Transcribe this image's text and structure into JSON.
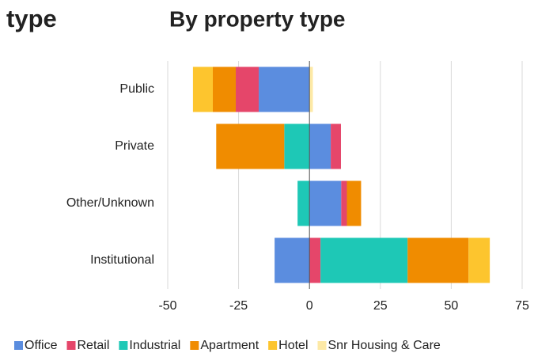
{
  "side_title": "type",
  "chart_data": {
    "type": "diverging_stacked_bar",
    "orientation": "horizontal",
    "title": "By property type",
    "categories": [
      "Public",
      "Private",
      "Other/Unknown",
      "Institutional"
    ],
    "series": [
      {
        "name": "Office",
        "color": "#5b8ddf",
        "values": [
          -17.9,
          7.5,
          11.2,
          -12.3
        ]
      },
      {
        "name": "Retail",
        "color": "#e5466a",
        "values": [
          -8.1,
          3.6,
          2,
          3.9
        ]
      },
      {
        "name": "Industrial",
        "color": "#1ec8b6",
        "values": [
          0,
          -8.9,
          -4.2,
          30.7
        ]
      },
      {
        "name": "Apartment",
        "color": "#f08c00",
        "values": [
          -8.1,
          -24,
          5,
          21.5
        ]
      },
      {
        "name": "Hotel",
        "color": "#fdc52e",
        "values": [
          -7,
          0,
          0,
          7.5
        ]
      },
      {
        "name": "Snr Housing & Care",
        "color": "#fde9a6",
        "values": [
          1.2,
          0,
          0,
          0
        ]
      }
    ],
    "xlim": [
      -50,
      75
    ],
    "xticks": [
      -50,
      -25,
      0,
      25,
      50,
      75
    ],
    "grid": true,
    "legend": "bottom"
  }
}
